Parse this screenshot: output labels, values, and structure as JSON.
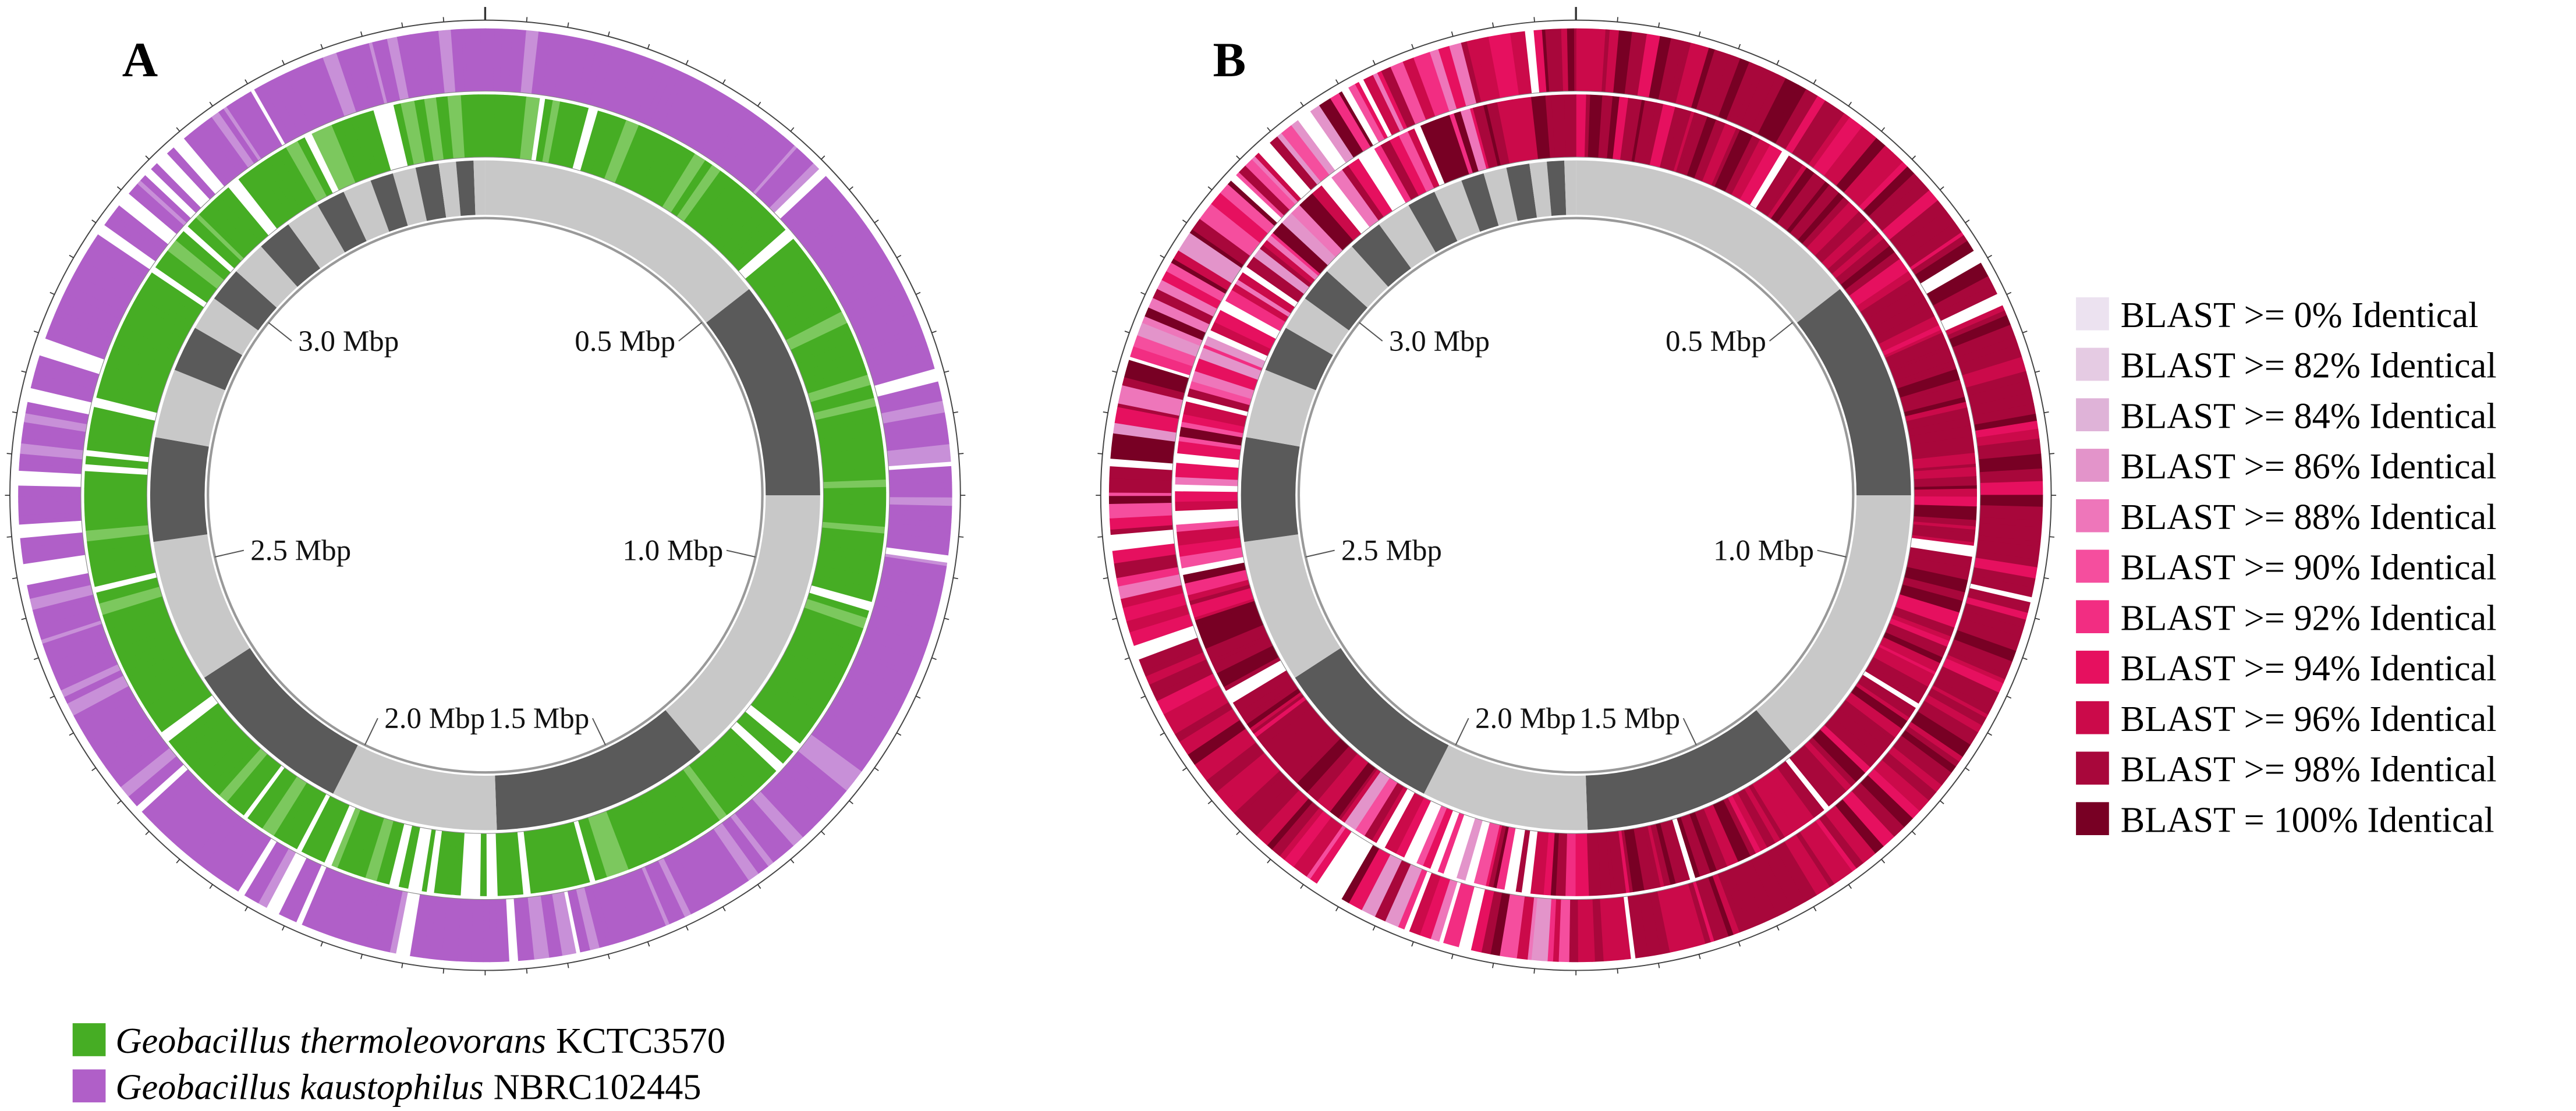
{
  "panels": [
    {
      "label": "A",
      "scale_labels": [
        "0.5 Mbp",
        "1.0 Mbp",
        "1.5 Mbp",
        "2.0 Mbp",
        "2.5 Mbp",
        "3.0 Mbp"
      ]
    },
    {
      "label": "B",
      "scale_labels": [
        "0.5 Mbp",
        "1.0 Mbp",
        "1.5 Mbp",
        "2.0 Mbp",
        "2.5 Mbp",
        "3.0 Mbp"
      ]
    }
  ],
  "legend_a": [
    {
      "species": "Geobacillus thermoleovorans",
      "strain": "KCTC3570",
      "color": "#46ad24"
    },
    {
      "species": "Geobacillus kaustophilus",
      "strain": "NBRC102445",
      "color": "#b05fc8"
    }
  ],
  "legend_b": [
    {
      "label": "BLAST >= 0% Identical",
      "color": "#ece2f0"
    },
    {
      "label": "BLAST >= 82% Identical",
      "color": "#e5cbe3"
    },
    {
      "label": "BLAST >= 84% Identical",
      "color": "#dfb3d8"
    },
    {
      "label": "BLAST >= 86% Identical",
      "color": "#e394ca"
    },
    {
      "label": "BLAST >= 88% Identical",
      "color": "#ee76ba"
    },
    {
      "label": "BLAST >= 90% Identical",
      "color": "#f54e9e"
    },
    {
      "label": "BLAST >= 92% Identical",
      "color": "#f22d82"
    },
    {
      "label": "BLAST >= 94% Identical",
      "color": "#e6105f"
    },
    {
      "label": "BLAST >= 96% Identical",
      "color": "#cb0a4a"
    },
    {
      "label": "BLAST >= 98% Identical",
      "color": "#a8073b"
    },
    {
      "label": "BLAST = 100% Identical",
      "color": "#780024"
    }
  ]
}
